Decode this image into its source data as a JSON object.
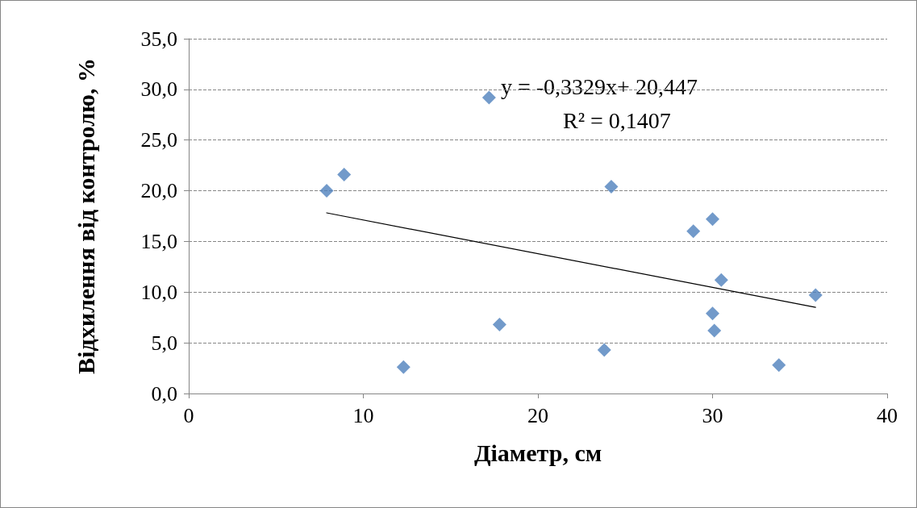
{
  "chart_data": {
    "type": "scatter",
    "xlabel": "Діаметр, см",
    "ylabel": "Відхилення від контролю, %",
    "xlim": [
      0,
      40
    ],
    "xticks": [
      0,
      10,
      20,
      30,
      40
    ],
    "ylim": [
      0,
      35
    ],
    "yticks": [
      {
        "value": 0,
        "label": "0,0"
      },
      {
        "value": 5,
        "label": "5,0"
      },
      {
        "value": 10,
        "label": "10,0"
      },
      {
        "value": 15,
        "label": "15,0"
      },
      {
        "value": 20,
        "label": "20,0"
      },
      {
        "value": 25,
        "label": "25,0"
      },
      {
        "value": 30,
        "label": "30,0"
      },
      {
        "value": 35,
        "label": "35,0"
      }
    ],
    "grid": "y",
    "marker": "diamond",
    "annotations": [
      "y = -0,3329x+ 20,447",
      "R² = 0,1407"
    ],
    "series": [
      {
        "color": "#4f81bd",
        "x": [
          7.9,
          8.9,
          12.3,
          17.2,
          17.8,
          23.8,
          24.2,
          28.9,
          30.0,
          30.5,
          30.0,
          30.1,
          33.8,
          35.9
        ],
        "values": [
          20.0,
          21.6,
          2.6,
          29.2,
          6.8,
          4.3,
          20.4,
          16.0,
          17.2,
          11.2,
          7.9,
          6.2,
          2.8,
          9.7
        ]
      },
      {
        "type": "line",
        "color": "#000000",
        "marker": "none",
        "line_style": "solid",
        "x": [
          7.9,
          35.9
        ],
        "values": [
          17.82,
          8.5
        ]
      }
    ]
  }
}
